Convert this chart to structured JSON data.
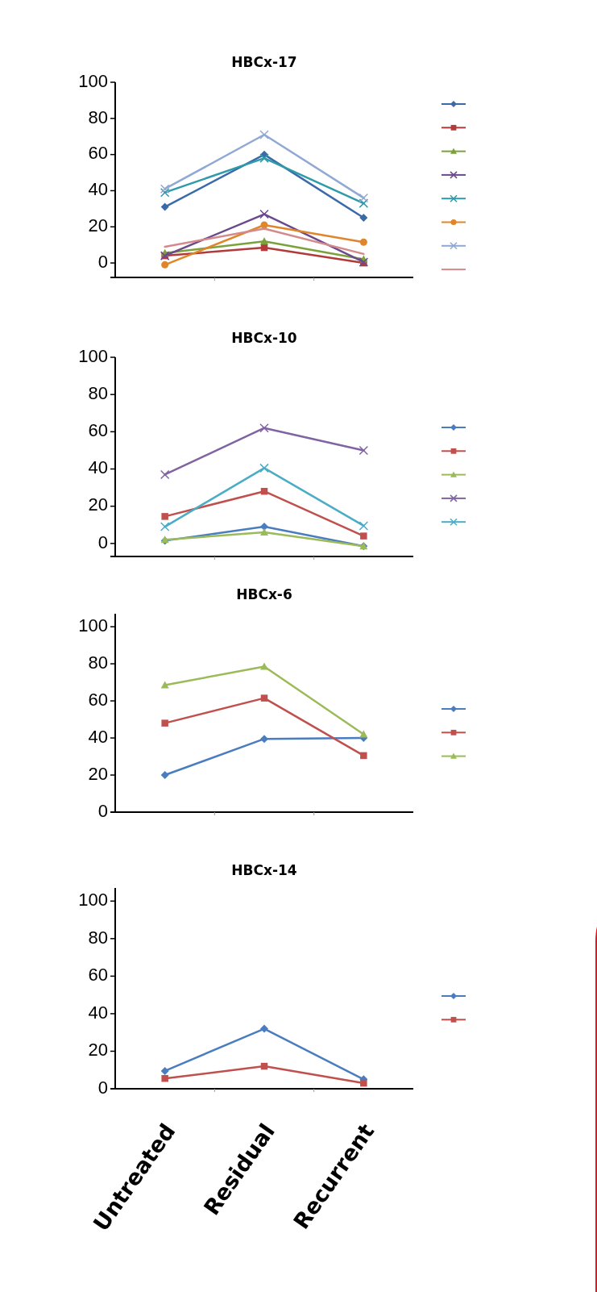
{
  "chart_data": [
    {
      "type": "line",
      "title": "HBCx-17",
      "categories": [
        null,
        null,
        null
      ],
      "ylim": [
        -8,
        100
      ],
      "yticks": [
        0,
        20,
        40,
        60,
        80,
        100
      ],
      "tick_labels": "y",
      "series": [
        {
          "color": "#3a6aa8",
          "marker": "diamond",
          "values": [
            31,
            60,
            25
          ]
        },
        {
          "color": "#b23a3a",
          "marker": "square",
          "values": [
            4,
            8.5,
            0
          ]
        },
        {
          "color": "#7ba23a",
          "marker": "triangle",
          "values": [
            5.5,
            12,
            2
          ]
        },
        {
          "color": "#6a4a8c",
          "marker": "cross",
          "values": [
            4,
            27,
            0.5
          ]
        },
        {
          "color": "#2e9aaa",
          "marker": "cross",
          "values": [
            39,
            58,
            33
          ]
        },
        {
          "color": "#e0862a",
          "marker": "circle",
          "values": [
            -1,
            21,
            11.5
          ]
        },
        {
          "color": "#8fa8d4",
          "marker": "cross",
          "values": [
            41,
            71,
            36
          ]
        },
        {
          "color": "#d48a8a",
          "marker": "none",
          "values": [
            9,
            19,
            5
          ]
        }
      ]
    },
    {
      "type": "line",
      "title": "HBCx-10",
      "categories": [
        null,
        null,
        null
      ],
      "ylim": [
        -7,
        100
      ],
      "yticks": [
        0,
        20,
        40,
        60,
        80,
        100
      ],
      "tick_labels": "y",
      "series": [
        {
          "color": "#4a7cc0",
          "marker": "diamond",
          "values": [
            1.5,
            9,
            -1.5
          ]
        },
        {
          "color": "#c0504d",
          "marker": "square",
          "values": [
            14.5,
            28,
            4
          ]
        },
        {
          "color": "#9bbb59",
          "marker": "triangle",
          "values": [
            2,
            6,
            -1.5
          ]
        },
        {
          "color": "#8064a2",
          "marker": "cross",
          "values": [
            37,
            62,
            50
          ]
        },
        {
          "color": "#4bacc6",
          "marker": "cross",
          "values": [
            9,
            40.5,
            9.5
          ]
        }
      ]
    },
    {
      "type": "line",
      "title": "HBCx-6",
      "categories": [
        null,
        null,
        null
      ],
      "ylim": [
        0,
        107
      ],
      "yticks": [
        0,
        20,
        40,
        60,
        80,
        100
      ],
      "tick_labels": "y",
      "series": [
        {
          "color": "#4a7cc0",
          "marker": "diamond",
          "values": [
            20,
            39.5,
            40
          ]
        },
        {
          "color": "#c0504d",
          "marker": "square",
          "values": [
            48,
            61.5,
            30.5
          ]
        },
        {
          "color": "#9bbb59",
          "marker": "triangle",
          "values": [
            68.5,
            78.5,
            42
          ]
        }
      ]
    },
    {
      "type": "line",
      "title": "HBCx-14",
      "categories": [
        "Untreated",
        "Residual",
        "Recurrent"
      ],
      "ylim": [
        0,
        107
      ],
      "yticks": [
        0,
        20,
        40,
        60,
        80,
        100
      ],
      "series": [
        {
          "color": "#4a7cc0",
          "marker": "diamond",
          "values": [
            9.5,
            32,
            5
          ]
        },
        {
          "color": "#c0504d",
          "marker": "square",
          "values": [
            5.5,
            12,
            3
          ]
        }
      ]
    }
  ]
}
